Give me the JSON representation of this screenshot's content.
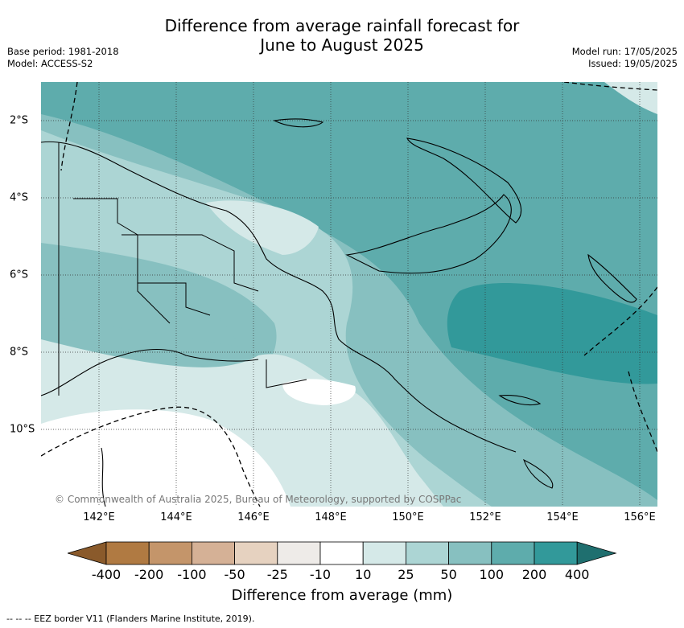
{
  "title_line1": "Difference from average rainfall forecast for",
  "title_line2": "June to August 2025",
  "base_period": "Base period: 1981-2018",
  "model": "Model: ACCESS-S2",
  "model_run": "Model run: 17/05/2025",
  "issued": "Issued: 19/05/2025",
  "copyright": "© Commonwealth of Australia 2025, Bureau of Meteorology, supported by COSPPac",
  "x_ticks": [
    "142°E",
    "144°E",
    "146°E",
    "148°E",
    "150°E",
    "152°E",
    "154°E",
    "156°E"
  ],
  "y_ticks": [
    "2°S",
    "4°S",
    "6°S",
    "8°S",
    "10°S"
  ],
  "colorbar": {
    "title": "Difference from average (mm)",
    "labels": [
      "-400",
      "-200",
      "-100",
      "-50",
      "-25",
      "-10",
      "10",
      "25",
      "50",
      "100",
      "200",
      "400"
    ],
    "colors": [
      "#8a5a2b",
      "#b07a42",
      "#c4956a",
      "#d5b196",
      "#e6d2c0",
      "#eeebe8",
      "#ffffff",
      "#d5e9e8",
      "#acd5d4",
      "#87c0c0",
      "#5eacac",
      "#32999a",
      "#1f6f6f"
    ]
  },
  "legend_note": "-- -- -- EEZ border V11 (Flanders Marine Institute, 2019)."
}
